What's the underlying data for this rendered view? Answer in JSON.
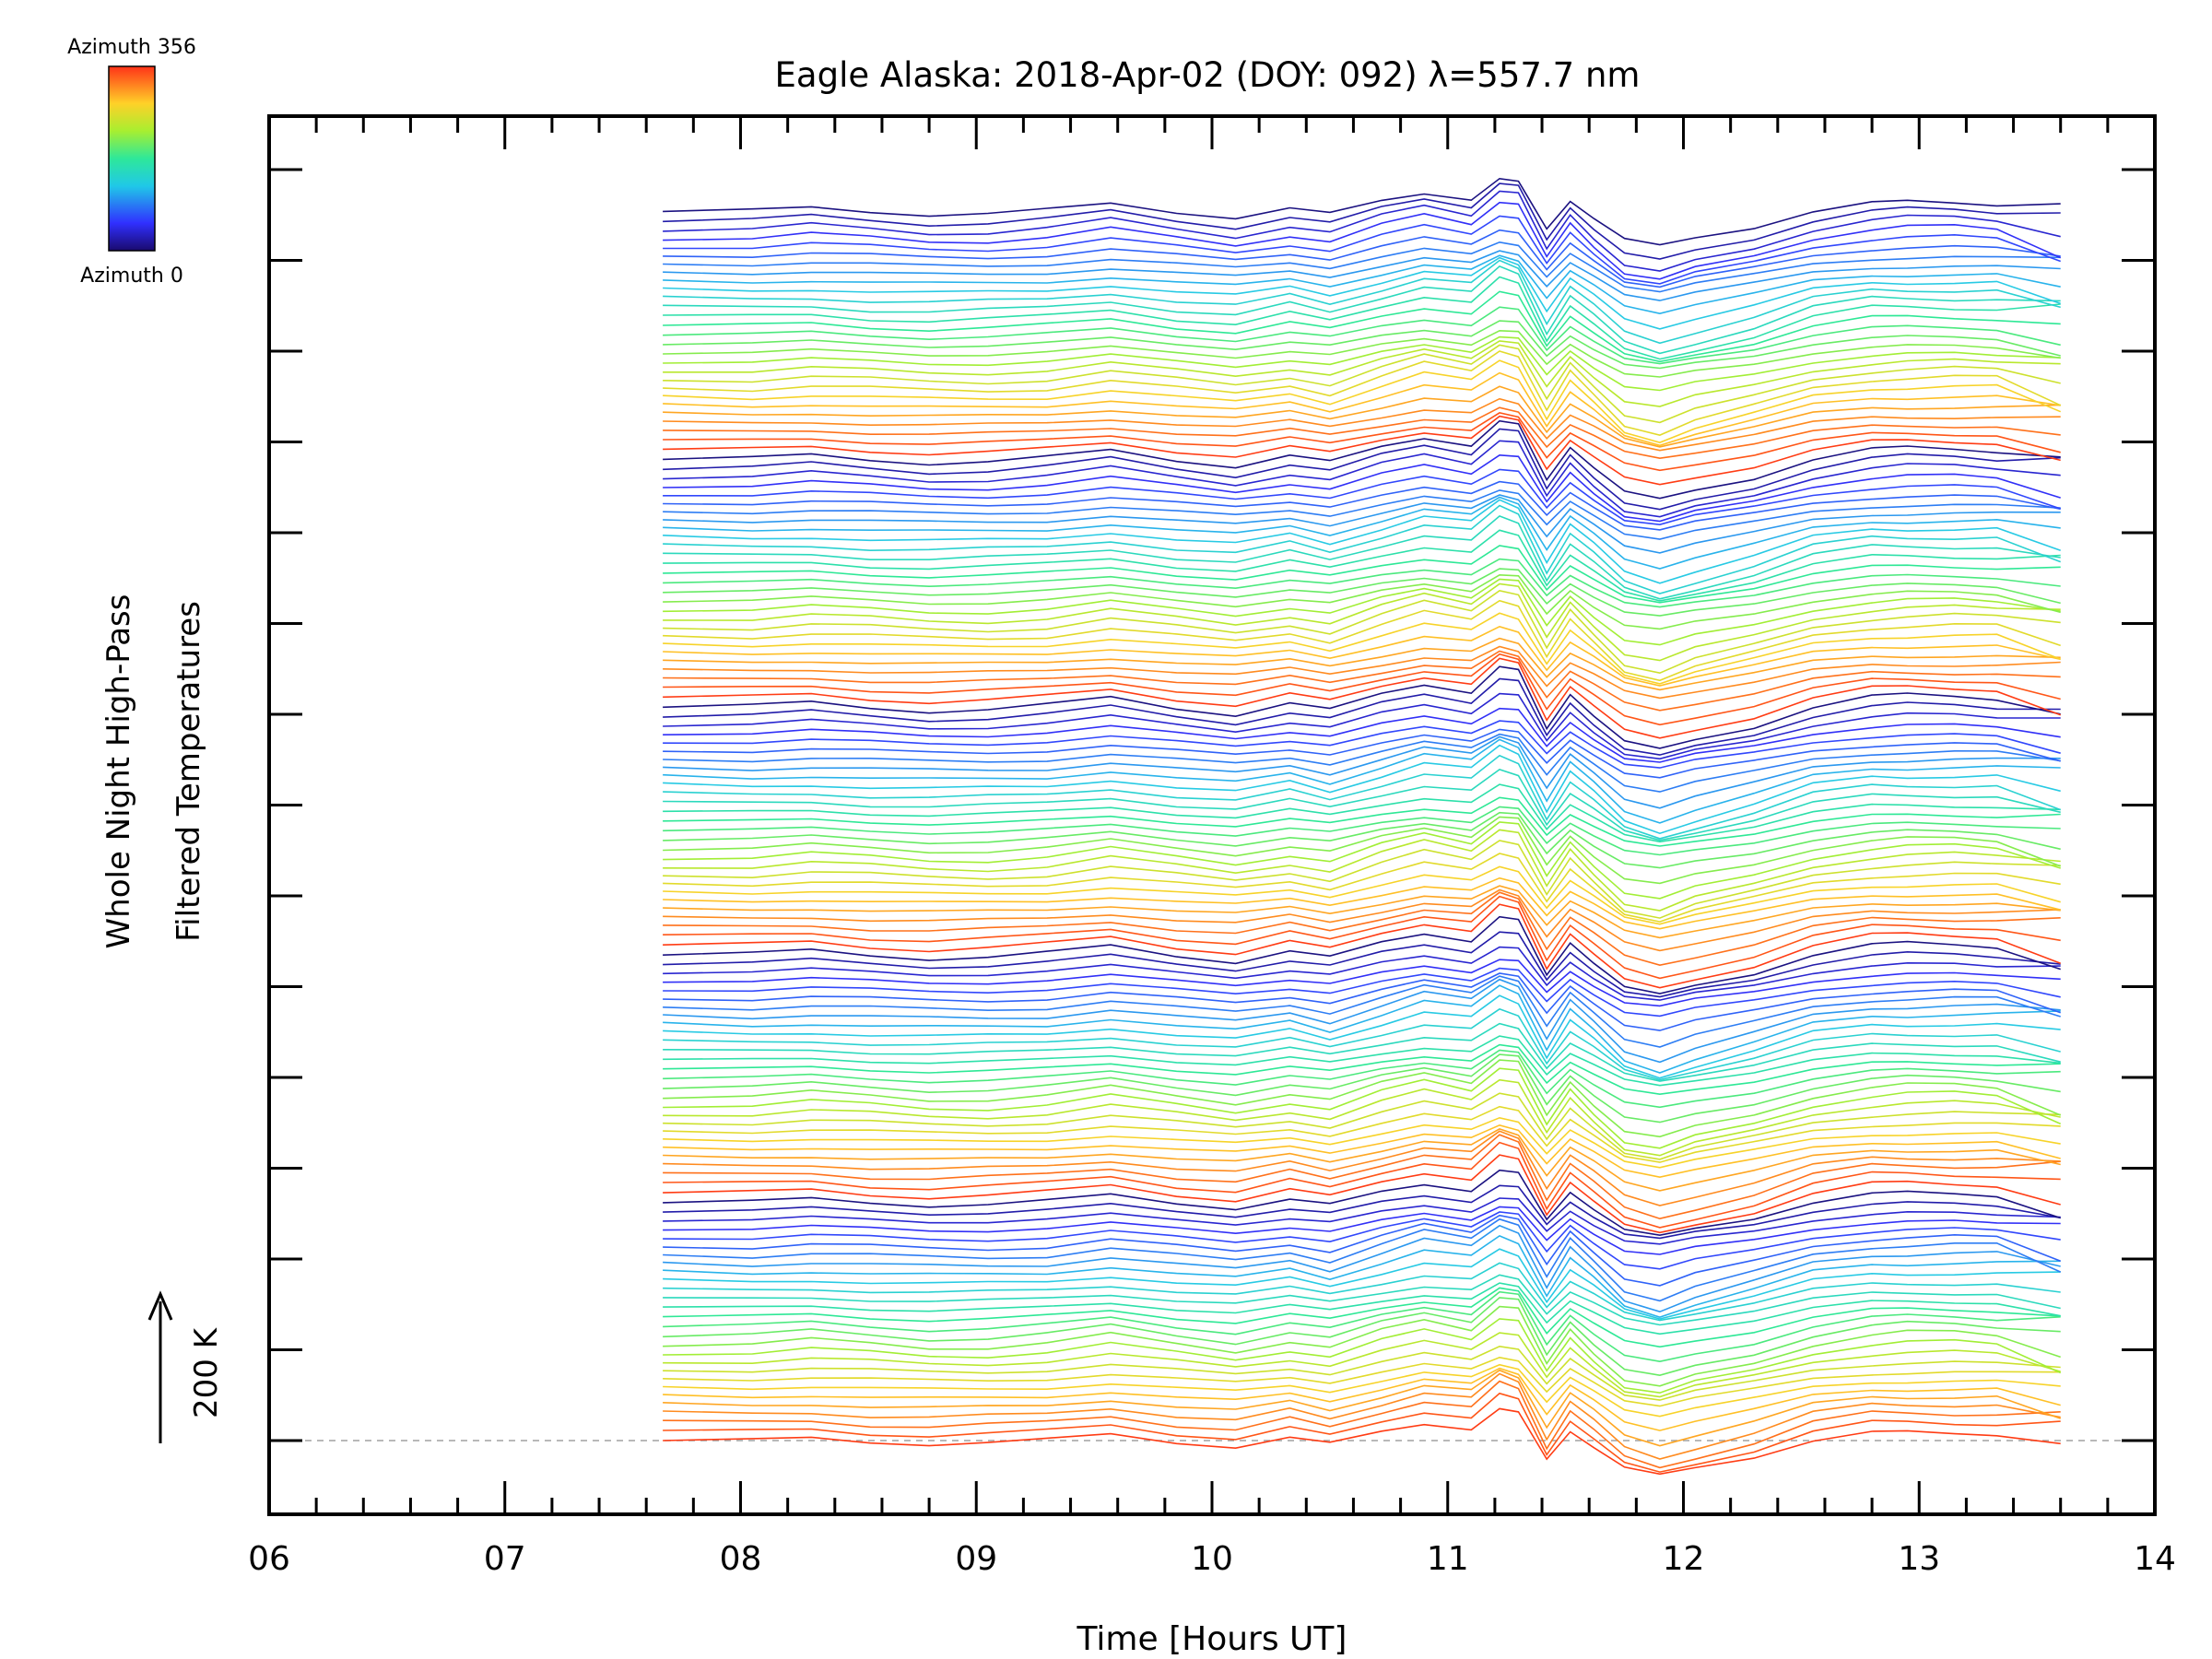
{
  "chart_data": {
    "type": "line",
    "title": "Eagle Alaska: 2018-Apr-02 (DOY: 092) λ=557.7 nm",
    "xlabel": "Time [Hours UT]",
    "ylabel_line1": "Whole Night High-Pass",
    "ylabel_line2": "Filtered Temperatures",
    "scale_label": "200 K",
    "colorbar": {
      "top_label": "Azimuth 356",
      "bottom_label": "Azimuth 0"
    },
    "xlim": [
      6,
      14
    ],
    "x_ticks": [
      "06",
      "07",
      "08",
      "09",
      "10",
      "11",
      "12",
      "13",
      "14"
    ],
    "grid": false,
    "n_series": 140,
    "x": [
      7.67,
      8.05,
      8.3,
      8.55,
      8.8,
      9.05,
      9.3,
      9.57,
      9.85,
      10.1,
      10.33,
      10.5,
      10.72,
      10.9,
      11.1,
      11.22,
      11.3,
      11.42,
      11.52,
      11.62,
      11.75,
      11.9,
      12.05,
      12.3,
      12.55,
      12.8,
      12.95,
      13.15,
      13.33,
      13.6
    ],
    "base_profile": [
      0.0,
      -0.02,
      0.1,
      -0.04,
      -0.15,
      -0.12,
      0.0,
      0.3,
      -0.05,
      -0.28,
      0.12,
      -0.2,
      0.45,
      0.9,
      0.6,
      1.5,
      1.3,
      -0.9,
      0.55,
      -0.3,
      -1.4,
      -1.75,
      -1.3,
      -0.75,
      0.0,
      0.35,
      0.4,
      0.4,
      0.35,
      -0.15
    ],
    "baseline_offset_K": 0
  }
}
